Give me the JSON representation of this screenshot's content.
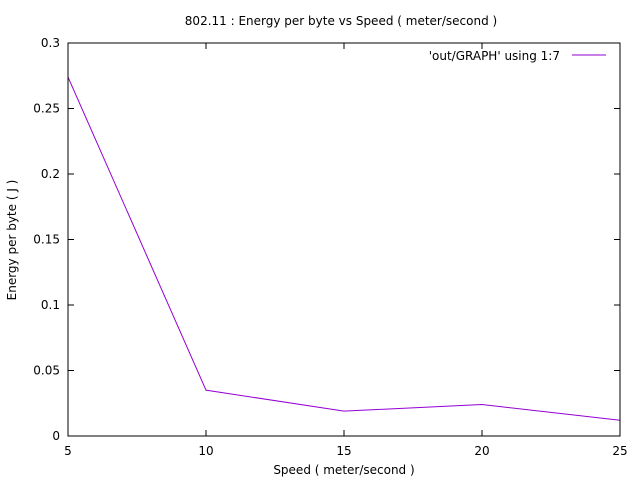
{
  "chart_data": {
    "type": "line",
    "title": "802.11 : Energy per byte vs Speed ( meter/second )",
    "xlabel": "Speed ( meter/second )",
    "ylabel": "Energy per byte ( J )",
    "xlim": [
      5,
      25
    ],
    "ylim": [
      0,
      0.3
    ],
    "x_ticks": [
      5,
      10,
      15,
      20,
      25
    ],
    "x_tick_labels": [
      "5",
      "10",
      "15",
      "20",
      "25"
    ],
    "y_ticks": [
      0,
      0.05,
      0.1,
      0.15,
      0.2,
      0.25,
      0.3
    ],
    "y_tick_labels": [
      "0",
      "0.05",
      "0.1",
      "0.15",
      "0.2",
      "0.25",
      "0.3"
    ],
    "grid": false,
    "legend_position": "top-right",
    "series": [
      {
        "name": "'out/GRAPH' using 1:7",
        "color": "#9400d3",
        "x": [
          5,
          10,
          15,
          20,
          25
        ],
        "y": [
          0.274,
          0.035,
          0.019,
          0.024,
          0.012
        ]
      }
    ]
  }
}
